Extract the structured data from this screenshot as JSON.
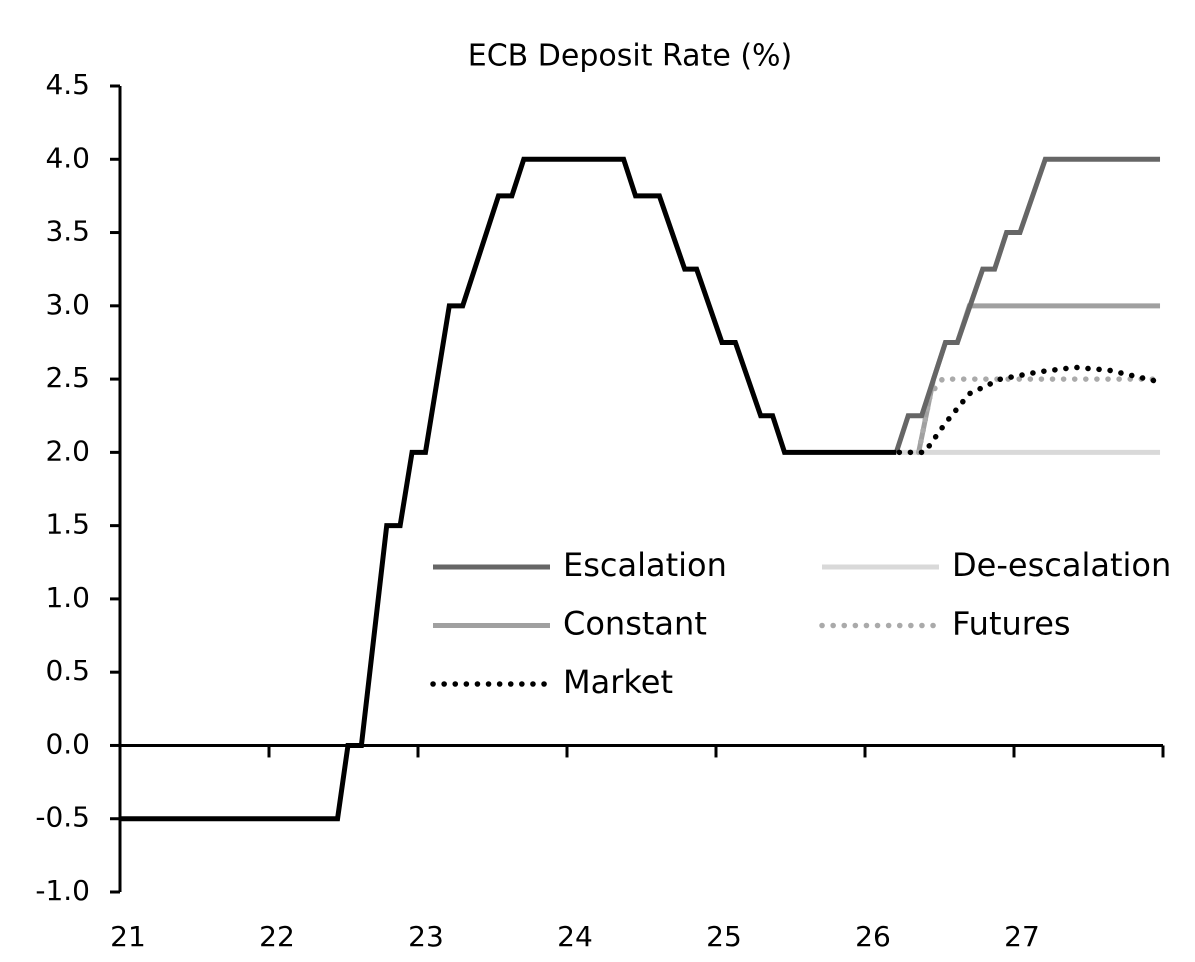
{
  "chart_data": {
    "type": "line",
    "title": "ECB Deposit Rate (%)",
    "xlim": [
      21,
      28
    ],
    "xticks": [
      21,
      22,
      23,
      24,
      25,
      26,
      27
    ],
    "ylim": [
      -1.0,
      4.5
    ],
    "yticks": [
      {
        "value": -1.0,
        "label": "-1.0"
      },
      -0.5,
      {
        "value": 0.0,
        "label": "0.0"
      },
      0.5,
      {
        "value": 1.0,
        "label": "1.0"
      },
      1.5,
      {
        "value": 2.0,
        "label": "2.0"
      },
      2.5,
      {
        "value": 3.0,
        "label": "3.0"
      },
      3.5,
      {
        "value": 4.0,
        "label": "4.0"
      },
      4.5
    ],
    "grid": false,
    "series": [
      {
        "color": "#000000",
        "dash": "solid",
        "x": [
          21.0,
          22.46,
          22.53,
          22.62,
          22.79,
          22.88,
          22.96,
          23.05,
          23.21,
          23.3,
          23.54,
          23.63,
          23.71,
          24.38,
          24.46,
          24.62,
          24.79,
          24.87,
          25.04,
          25.13,
          25.3,
          25.38,
          25.46,
          26.21
        ],
        "values": [
          -0.5,
          -0.5,
          0.0,
          0.0,
          1.5,
          1.5,
          2.0,
          2.0,
          3.0,
          3.0,
          3.75,
          3.75,
          4.0,
          4.0,
          3.75,
          3.75,
          3.25,
          3.25,
          2.75,
          2.75,
          2.25,
          2.25,
          2.0,
          2.0
        ]
      },
      {
        "name": "Escalation",
        "color": "#666666",
        "dash": "solid",
        "x": [
          26.21,
          26.29,
          26.38,
          26.54,
          26.62,
          26.79,
          26.87,
          26.95,
          27.04,
          27.21,
          27.98
        ],
        "values": [
          2.0,
          2.25,
          2.25,
          2.75,
          2.75,
          3.25,
          3.25,
          3.5,
          3.5,
          4.0,
          4.0
        ]
      },
      {
        "name": "De-escalation",
        "color": "#d9d9d9",
        "dash": "solid",
        "x": [
          26.23,
          27.98
        ],
        "values": [
          2.0,
          2.0
        ]
      },
      {
        "name": "Constant",
        "color": "#a0a0a0",
        "dash": "solid",
        "x": [
          26.36,
          26.46,
          26.54,
          26.62,
          26.7,
          27.98
        ],
        "values": [
          2.0,
          2.5,
          2.75,
          2.75,
          3.0,
          3.0
        ]
      },
      {
        "name": "Futures",
        "color": "#aaaaaa",
        "dash": "dotted",
        "x": [
          26.36,
          26.44,
          26.52,
          27.98
        ],
        "values": [
          2.0,
          2.4,
          2.5,
          2.5
        ]
      },
      {
        "name": "Market",
        "color": "#000000",
        "dash": "dotted",
        "x": [
          26.23,
          26.4,
          26.54,
          26.7,
          26.91,
          27.17,
          27.41,
          27.64,
          27.98
        ],
        "values": [
          2.0,
          2.0,
          2.2,
          2.4,
          2.5,
          2.55,
          2.58,
          2.56,
          2.48
        ]
      }
    ]
  }
}
